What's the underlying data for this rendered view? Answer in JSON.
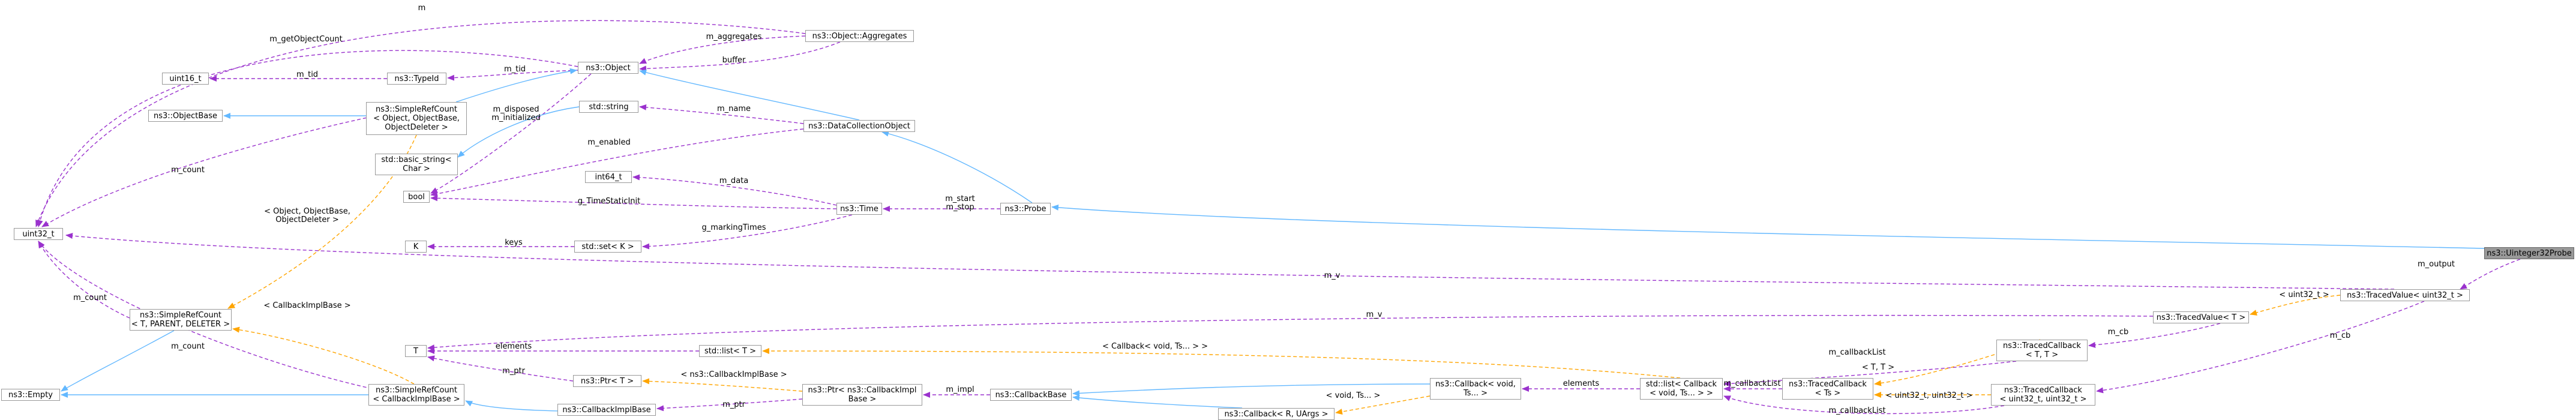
{
  "nodes": {
    "uint32_t": "uint32_t",
    "uint16_t": "uint16_t",
    "ns3_ObjectBase": "ns3::ObjectBase",
    "ns3_TypeId": "ns3::TypeId",
    "ns3_Object": "ns3::Object",
    "ns3_Object_Aggregates": "ns3::Object::Aggregates",
    "ns3_SimpleRefCount_Object": "ns3::SimpleRefCount\n< Object, ObjectBase,\nObjectDeleter >",
    "std_string": "std::string",
    "std_basic_string": "std::basic_string<\nChar >",
    "ns3_DataCollectionObject": "ns3::DataCollectionObject",
    "bool": "bool",
    "int64_t": "int64_t",
    "ns3_Time": "ns3::Time",
    "ns3_Probe": "ns3::Probe",
    "ns3_Uinteger32Probe": "ns3::Uinteger32Probe",
    "K": "K",
    "std_set_K": "std::set< K >",
    "ns3_SimpleRefCount_T": "ns3::SimpleRefCount\n< T, PARENT, DELETER >",
    "T": "T",
    "ns3_Empty": "ns3::Empty",
    "ns3_SimpleRefCount_CallbackImplBase": "ns3::SimpleRefCount\n< CallbackImplBase >",
    "std_list_T": "std::list< T >",
    "ns3_Ptr_T": "ns3::Ptr< T >",
    "ns3_CallbackImplBase": "ns3::CallbackImplBase",
    "ns3_Ptr_CallbackImplBase": "ns3::Ptr< ns3::CallbackImpl\nBase >",
    "ns3_CallbackBase": "ns3::CallbackBase",
    "ns3_Callback_R_UArgs": "ns3::Callback< R, UArgs >",
    "ns3_Callback_void_Ts": "ns3::Callback< void,\nTs... >",
    "std_list_Callback": "std::list< Callback\n< void, Ts... > >",
    "ns3_TracedCallback_Ts": "ns3::TracedCallback\n< Ts >",
    "ns3_TracedCallback_T_T": "ns3::TracedCallback\n< T, T >",
    "ns3_TracedCallback_uint32": "ns3::TracedCallback\n< uint32_t, uint32_t >",
    "ns3_TracedValue_T": "ns3::TracedValue< T >",
    "ns3_TracedValue_uint32": "ns3::TracedValue< uint32_t >"
  },
  "edge_labels": {
    "m": "m",
    "m_getObjectCount": "m_getObjectCount",
    "m_aggregates": "m_aggregates",
    "buffer": "buffer",
    "m_tid_object": "m_tid",
    "m_tid_typeid": "m_tid",
    "m_disposed": "m_disposed\nm_initialized",
    "m_name": "m_name",
    "m_count_object": "m_count",
    "m_enabled": "m_enabled",
    "m_data": "m_data",
    "g_TimeStaticInit": "g_TimeStaticInit",
    "m_start_stop": "m_start\nm_stop",
    "keys": "keys",
    "g_markingTimes": "g_markingTimes",
    "tmpl_object": "< Object, ObjectBase,\nObjectDeleter >",
    "m_v_uint32": "m_v",
    "m_output": "m_output",
    "m_count_src": "m_count",
    "tmpl_callbackimplbase": "< CallbackImplBase >",
    "m_v_T": "m_v",
    "tmpl_uint32_traced": "< uint32_t >",
    "m_count_cb": "m_count",
    "elements_list": "elements",
    "tmpl_callback_void": "< Callback< void, Ts... > >",
    "m_cb_T": "m_cb",
    "m_cb_uint32": "m_cb",
    "m_ptr_T": "m_ptr",
    "tmpl_callbackimpl_ptr": "< ns3::CallbackImplBase >",
    "m_impl": "m_impl",
    "m_ptr_impl": "m_ptr",
    "m_callbackList_T": "m_callbackList",
    "tmpl_T_T": "< T, T >",
    "elements_cb": "elements",
    "m_callbackList_Ts": "m_callbackList",
    "tmpl_void_Ts": "< void, Ts... >",
    "tmpl_uint32_uint32": "< uint32_t, uint32_t >",
    "m_callbackList_u32": "m_callbackList"
  },
  "colors": {
    "inheritance": "#63b8ff",
    "usage": "#9a32cd",
    "template": "#ffa500",
    "node_border": "#999999",
    "focus_fill": "#999999"
  }
}
